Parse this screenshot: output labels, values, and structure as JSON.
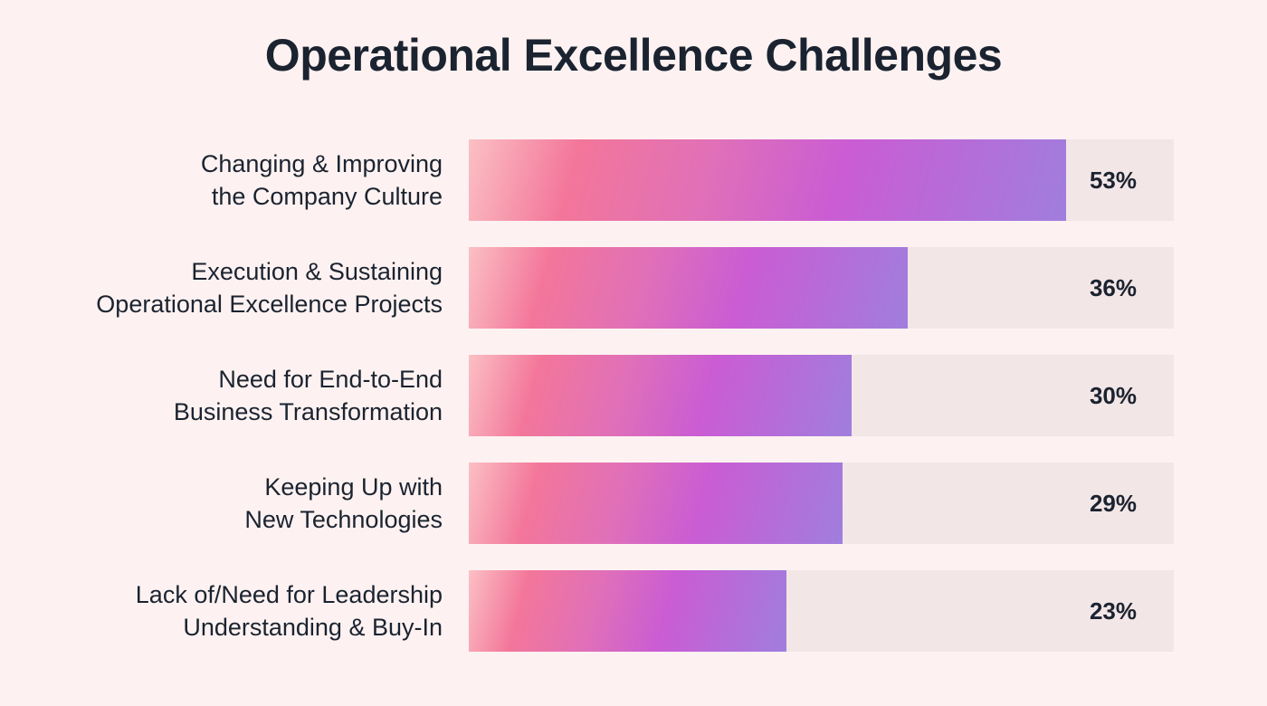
{
  "chart_data": {
    "type": "bar",
    "orientation": "horizontal",
    "title": "Operational Excellence Challenges",
    "categories": [
      [
        "Changing & Improving",
        "the Company Culture"
      ],
      [
        "Execution & Sustaining",
        "Operational Excellence Projects"
      ],
      [
        "Need for End-to-End",
        "Business Transformation"
      ],
      [
        "Keeping Up with",
        "New Technologies"
      ],
      [
        "Lack of/Need for Leadership",
        "Understanding & Buy-In"
      ]
    ],
    "values": [
      53,
      36,
      30,
      29,
      23
    ],
    "value_labels": [
      "53%",
      "36%",
      "30%",
      "29%",
      "23%"
    ],
    "unit": "%",
    "xlabel": "",
    "ylabel": "",
    "grid": false,
    "colors": {
      "background": "#fdf2f1",
      "track": "#f3e6e6",
      "gradient": [
        "#fbc0c4",
        "#f3769a",
        "#ca5cd4",
        "#a07edd"
      ],
      "text": "#1b2330"
    }
  }
}
